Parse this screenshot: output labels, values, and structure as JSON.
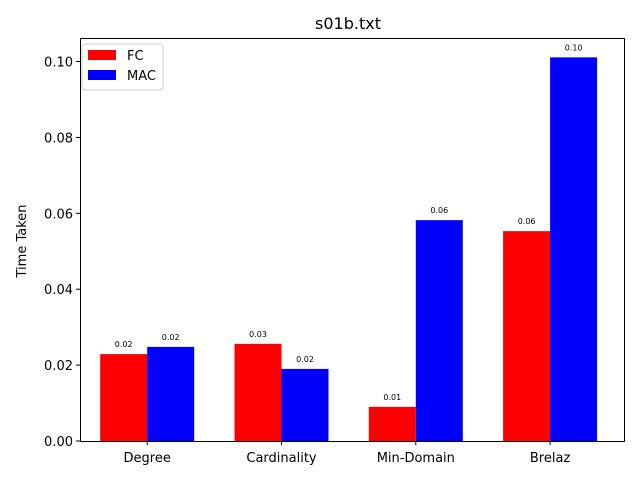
{
  "chart_data": {
    "type": "bar",
    "title": "s01b.txt",
    "xlabel": "",
    "ylabel": "Time Taken",
    "categories": [
      "Degree",
      "Cardinality",
      "Min-Domain",
      "Brelaz"
    ],
    "series": [
      {
        "name": "FC",
        "color": "#ff0000",
        "values": [
          0.0229,
          0.0256,
          0.009,
          0.0553
        ],
        "labels": [
          "0.02",
          "0.03",
          "0.01",
          "0.06"
        ]
      },
      {
        "name": "MAC",
        "color": "#0000ff",
        "values": [
          0.0248,
          0.019,
          0.0582,
          0.1011
        ],
        "labels": [
          "0.02",
          "0.02",
          "0.06",
          "0.10"
        ]
      }
    ],
    "ylim": [
      0,
      0.1062
    ],
    "yticks": [
      0.0,
      0.02,
      0.04,
      0.06,
      0.08,
      0.1
    ],
    "ytick_labels": [
      "0.00",
      "0.02",
      "0.04",
      "0.06",
      "0.08",
      "0.10"
    ],
    "grid": false,
    "legend_position": "top-left"
  }
}
